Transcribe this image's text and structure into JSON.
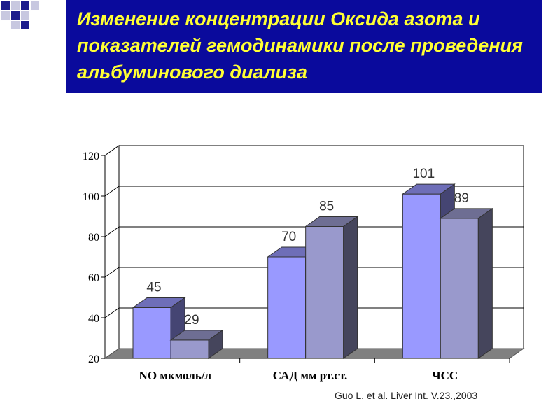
{
  "slide": {
    "title": "Изменение концентрации  Оксида азота и показателей гемодинамики после проведения альбуминового диализа",
    "citation": "Guo L. et al. Liver Int. V.23.,2003"
  },
  "colors": {
    "banner": "#0a0a9c",
    "title_text": "#ffff33",
    "series_before": "#9999ff",
    "series_after": "#9999cc",
    "floor": "#808080"
  },
  "chart_data": {
    "type": "bar",
    "title": "",
    "xlabel": "",
    "ylabel": "",
    "categories": [
      "NO мкмоль/л",
      "САД мм рт.ст.",
      "ЧСС"
    ],
    "series": [
      {
        "values": [
          45,
          70,
          101
        ],
        "labels": [
          "45",
          "70",
          "101"
        ]
      },
      {
        "values": [
          29,
          85,
          89
        ],
        "labels": [
          "29",
          "85",
          "89"
        ]
      }
    ],
    "ylim": [
      20,
      120
    ],
    "yticks": [
      "20",
      "40",
      "60",
      "80",
      "100",
      "120"
    ],
    "grid": true,
    "legend": "none"
  }
}
